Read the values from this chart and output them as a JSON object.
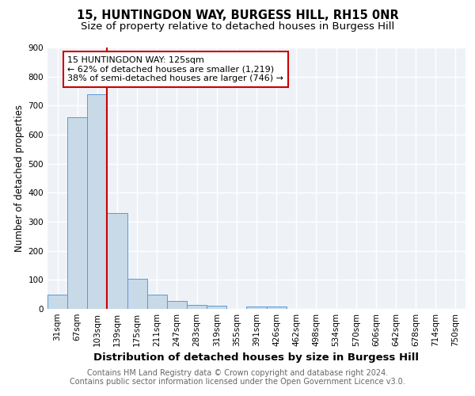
{
  "title1": "15, HUNTINGDON WAY, BURGESS HILL, RH15 0NR",
  "title2": "Size of property relative to detached houses in Burgess Hill",
  "xlabel": "Distribution of detached houses by size in Burgess Hill",
  "ylabel": "Number of detached properties",
  "categories": [
    "31sqm",
    "67sqm",
    "103sqm",
    "139sqm",
    "175sqm",
    "211sqm",
    "247sqm",
    "283sqm",
    "319sqm",
    "355sqm",
    "391sqm",
    "426sqm",
    "462sqm",
    "498sqm",
    "534sqm",
    "570sqm",
    "606sqm",
    "642sqm",
    "678sqm",
    "714sqm",
    "750sqm"
  ],
  "values": [
    50,
    660,
    740,
    330,
    105,
    50,
    27,
    15,
    10,
    0,
    8,
    8,
    0,
    0,
    0,
    0,
    0,
    0,
    0,
    0,
    0
  ],
  "bar_color": "#c8d9e8",
  "bar_edge_color": "#5b9bd5",
  "vline_x": 2.5,
  "vline_color": "#cc0000",
  "annotation_text": "15 HUNTINGDON WAY: 125sqm\n← 62% of detached houses are smaller (1,219)\n38% of semi-detached houses are larger (746) →",
  "annotation_box_color": "#cc0000",
  "ylim": [
    0,
    900
  ],
  "yticks": [
    0,
    100,
    200,
    300,
    400,
    500,
    600,
    700,
    800,
    900
  ],
  "footer1": "Contains HM Land Registry data © Crown copyright and database right 2024.",
  "footer2": "Contains public sector information licensed under the Open Government Licence v3.0.",
  "bg_color": "#eef2f7",
  "grid_color": "#ffffff",
  "title1_fontsize": 10.5,
  "title2_fontsize": 9.5,
  "xlabel_fontsize": 9.5,
  "ylabel_fontsize": 8.5,
  "tick_fontsize": 7.5,
  "footer_fontsize": 7.0,
  "annotation_fontsize": 8.0
}
